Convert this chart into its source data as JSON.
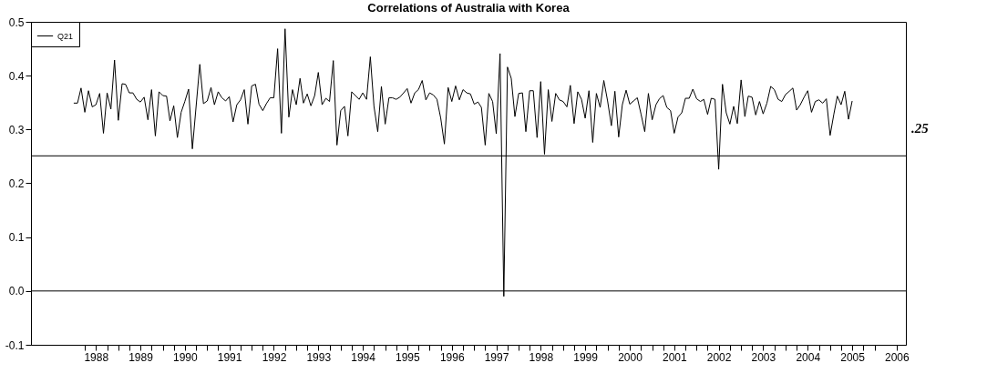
{
  "chart_data": {
    "type": "line",
    "title": "Correlations of Australia with Korea",
    "series": [
      {
        "name": "Q21",
        "color": "#000000",
        "x": [
          "1988-01",
          "1988-02",
          "1988-03",
          "1988-04",
          "1988-05",
          "1988-06",
          "1988-07",
          "1988-08",
          "1988-09",
          "1988-10",
          "1988-11",
          "1988-12",
          "1989-01",
          "1989-02",
          "1989-03",
          "1989-04",
          "1989-05",
          "1989-06",
          "1989-07",
          "1989-08",
          "1989-09",
          "1989-10",
          "1989-11",
          "1989-12",
          "1990-01",
          "1990-02",
          "1990-03",
          "1990-04",
          "1990-05",
          "1990-06",
          "1990-07",
          "1990-08",
          "1990-09",
          "1990-11",
          "1990-12",
          "1991-01",
          "1991-02",
          "1991-03",
          "1991-04",
          "1991-05",
          "1991-06",
          "1991-07",
          "1991-08",
          "1991-09",
          "1991-10",
          "1991-11",
          "1991-12",
          "1992-01",
          "1992-02",
          "1992-03",
          "1992-04",
          "1992-05",
          "1992-06",
          "1992-07",
          "1992-08",
          "1992-09",
          "1992-10",
          "1992-11",
          "1992-12",
          "1993-01",
          "1993-02",
          "1993-03",
          "1993-04",
          "1993-05",
          "1993-06",
          "1993-07",
          "1993-08",
          "1993-09",
          "1993-10",
          "1993-11",
          "1993-12",
          "1994-01",
          "1994-02",
          "1994-03",
          "1994-04",
          "1994-05",
          "1994-06",
          "1994-07",
          "1994-08",
          "1994-09",
          "1994-10",
          "1994-11",
          "1994-12",
          "1995-01",
          "1995-02",
          "1995-03",
          "1995-04",
          "1995-05",
          "1995-06",
          "1995-07",
          "1995-08",
          "1995-09",
          "1995-10",
          "1995-11",
          "1995-12",
          "1996-01",
          "1996-02",
          "1996-03",
          "1996-04",
          "1996-05",
          "1996-06",
          "1996-07",
          "1996-08",
          "1996-09",
          "1996-10",
          "1996-11",
          "1996-12",
          "1997-01",
          "1997-02",
          "1997-03",
          "1997-04",
          "1997-05",
          "1997-06",
          "1997-07",
          "1997-08",
          "1997-09",
          "1997-10",
          "1997-11",
          "1997-12",
          "1998-01",
          "1998-02",
          "1998-03",
          "1998-04",
          "1998-05",
          "1998-06",
          "1998-07",
          "1998-08",
          "1998-09",
          "1998-10",
          "1998-11",
          "1998-12",
          "1999-01",
          "1999-02",
          "1999-03",
          "1999-04",
          "1999-05",
          "1999-06",
          "1999-07",
          "1999-08",
          "1999-09",
          "1999-10",
          "1999-11",
          "1999-12",
          "2000-01",
          "2000-02",
          "2000-03",
          "2000-04",
          "2000-05",
          "2000-06",
          "2000-07",
          "2000-08",
          "2000-09",
          "2000-10",
          "2000-11",
          "2000-12",
          "2001-01",
          "2001-02",
          "2001-03",
          "2001-04",
          "2001-05",
          "2001-06",
          "2001-07",
          "2001-08",
          "2001-09",
          "2001-10",
          "2001-11",
          "2001-12",
          "2002-01",
          "2002-02",
          "2002-03",
          "2002-04",
          "2002-05",
          "2002-06",
          "2002-07",
          "2002-08",
          "2002-09",
          "2002-10",
          "2002-11",
          "2002-12",
          "2003-01",
          "2003-02",
          "2003-03",
          "2003-04",
          "2003-05",
          "2003-06",
          "2003-07",
          "2003-08",
          "2003-09",
          "2003-10",
          "2003-11",
          "2003-12",
          "2004-01",
          "2004-02",
          "2004-03",
          "2004-04",
          "2004-05",
          "2004-06",
          "2004-07",
          "2004-08",
          "2004-09",
          "2004-10",
          "2004-11",
          "2004-12",
          "2005-01",
          "2005-02",
          "2005-03",
          "2005-04",
          "2005-05",
          "2005-06",
          "2005-07"
        ],
        "values": [
          0.349,
          0.349,
          0.377,
          0.332,
          0.372,
          0.342,
          0.346,
          0.367,
          0.293,
          0.368,
          0.338,
          0.429,
          0.317,
          0.385,
          0.384,
          0.368,
          0.368,
          0.356,
          0.351,
          0.36,
          0.318,
          0.374,
          0.288,
          0.37,
          0.363,
          0.362,
          0.316,
          0.344,
          0.285,
          0.332,
          0.352,
          0.375,
          0.264,
          0.421,
          0.348,
          0.353,
          0.378,
          0.346,
          0.37,
          0.359,
          0.353,
          0.361,
          0.314,
          0.346,
          0.355,
          0.374,
          0.31,
          0.381,
          0.384,
          0.347,
          0.335,
          0.348,
          0.359,
          0.359,
          0.45,
          0.293,
          0.487,
          0.323,
          0.374,
          0.346,
          0.395,
          0.349,
          0.366,
          0.344,
          0.363,
          0.406,
          0.346,
          0.358,
          0.352,
          0.428,
          0.271,
          0.335,
          0.343,
          0.288,
          0.37,
          0.363,
          0.356,
          0.368,
          0.356,
          0.435,
          0.343,
          0.296,
          0.38,
          0.31,
          0.359,
          0.359,
          0.356,
          0.36,
          0.368,
          0.376,
          0.349,
          0.368,
          0.374,
          0.391,
          0.355,
          0.368,
          0.364,
          0.356,
          0.321,
          0.273,
          0.378,
          0.352,
          0.381,
          0.355,
          0.374,
          0.368,
          0.366,
          0.347,
          0.351,
          0.341,
          0.271,
          0.367,
          0.352,
          0.292,
          0.441,
          -0.01,
          0.416,
          0.395,
          0.324,
          0.367,
          0.368,
          0.296,
          0.372,
          0.372,
          0.285,
          0.389,
          0.254,
          0.374,
          0.315,
          0.367,
          0.355,
          0.352,
          0.342,
          0.382,
          0.311,
          0.37,
          0.356,
          0.321,
          0.372,
          0.276,
          0.367,
          0.341,
          0.391,
          0.353,
          0.307,
          0.371,
          0.286,
          0.346,
          0.373,
          0.347,
          0.353,
          0.359,
          0.329,
          0.296,
          0.367,
          0.318,
          0.346,
          0.357,
          0.363,
          0.341,
          0.335,
          0.293,
          0.323,
          0.331,
          0.358,
          0.358,
          0.375,
          0.357,
          0.352,
          0.356,
          0.328,
          0.358,
          0.356,
          0.226,
          0.384,
          0.331,
          0.31,
          0.343,
          0.311,
          0.392,
          0.324,
          0.362,
          0.36,
          0.327,
          0.352,
          0.329,
          0.349,
          0.38,
          0.374,
          0.356,
          0.352,
          0.365,
          0.371,
          0.377,
          0.336,
          0.346,
          0.36,
          0.372,
          0.332,
          0.352,
          0.355,
          0.349,
          0.357,
          0.289,
          0.329,
          0.362,
          0.346,
          0.371,
          0.319,
          0.353
        ]
      }
    ],
    "xlim": [
      "1987-01-15",
      "2006-09-15"
    ],
    "xticks": [
      {
        "value": "1988-04",
        "label": null
      },
      {
        "value": "1988-07",
        "label": "1988"
      },
      {
        "value": "1988-10",
        "label": null
      },
      {
        "value": "1989-01",
        "label": null
      },
      {
        "value": "1989-04",
        "label": null
      },
      {
        "value": "1989-07",
        "label": "1989"
      },
      {
        "value": "1989-10",
        "label": null
      },
      {
        "value": "1990-01",
        "label": null
      },
      {
        "value": "1990-04",
        "label": null
      },
      {
        "value": "1990-07",
        "label": "1990"
      },
      {
        "value": "1990-10",
        "label": null
      },
      {
        "value": "1991-01",
        "label": null
      },
      {
        "value": "1991-04",
        "label": null
      },
      {
        "value": "1991-07",
        "label": "1991"
      },
      {
        "value": "1991-10",
        "label": null
      },
      {
        "value": "1992-01",
        "label": null
      },
      {
        "value": "1992-04",
        "label": null
      },
      {
        "value": "1992-07",
        "label": "1992"
      },
      {
        "value": "1992-10",
        "label": null
      },
      {
        "value": "1993-01",
        "label": null
      },
      {
        "value": "1993-04",
        "label": null
      },
      {
        "value": "1993-07",
        "label": "1993"
      },
      {
        "value": "1993-10",
        "label": null
      },
      {
        "value": "1994-01",
        "label": null
      },
      {
        "value": "1994-04",
        "label": null
      },
      {
        "value": "1994-07",
        "label": "1994"
      },
      {
        "value": "1994-10",
        "label": null
      },
      {
        "value": "1995-01",
        "label": null
      },
      {
        "value": "1995-04",
        "label": null
      },
      {
        "value": "1995-07",
        "label": "1995"
      },
      {
        "value": "1995-10",
        "label": null
      },
      {
        "value": "1996-01",
        "label": null
      },
      {
        "value": "1996-04",
        "label": null
      },
      {
        "value": "1996-07",
        "label": "1996"
      },
      {
        "value": "1996-10",
        "label": null
      },
      {
        "value": "1997-01",
        "label": null
      },
      {
        "value": "1997-04",
        "label": null
      },
      {
        "value": "1997-07",
        "label": "1997"
      },
      {
        "value": "1997-10",
        "label": null
      },
      {
        "value": "1998-01",
        "label": null
      },
      {
        "value": "1998-04",
        "label": null
      },
      {
        "value": "1998-07",
        "label": "1998"
      },
      {
        "value": "1998-10",
        "label": null
      },
      {
        "value": "1999-01",
        "label": null
      },
      {
        "value": "1999-04",
        "label": null
      },
      {
        "value": "1999-07",
        "label": "1999"
      },
      {
        "value": "1999-10",
        "label": null
      },
      {
        "value": "2000-01",
        "label": null
      },
      {
        "value": "2000-04",
        "label": null
      },
      {
        "value": "2000-07",
        "label": "2000"
      },
      {
        "value": "2000-10",
        "label": null
      },
      {
        "value": "2001-01",
        "label": null
      },
      {
        "value": "2001-04",
        "label": null
      },
      {
        "value": "2001-07",
        "label": "2001"
      },
      {
        "value": "2001-10",
        "label": null
      },
      {
        "value": "2002-01",
        "label": null
      },
      {
        "value": "2002-04",
        "label": null
      },
      {
        "value": "2002-07",
        "label": "2002"
      },
      {
        "value": "2002-10",
        "label": null
      },
      {
        "value": "2003-01",
        "label": null
      },
      {
        "value": "2003-04",
        "label": null
      },
      {
        "value": "2003-07",
        "label": "2003"
      },
      {
        "value": "2003-10",
        "label": null
      },
      {
        "value": "2004-01",
        "label": null
      },
      {
        "value": "2004-04",
        "label": null
      },
      {
        "value": "2004-07",
        "label": "2004"
      },
      {
        "value": "2004-10",
        "label": null
      },
      {
        "value": "2005-01",
        "label": null
      },
      {
        "value": "2005-04",
        "label": null
      },
      {
        "value": "2005-07",
        "label": "2005"
      },
      {
        "value": "2005-10",
        "label": null
      },
      {
        "value": "2006-01",
        "label": null
      },
      {
        "value": "2006-07",
        "label": "2006"
      }
    ],
    "ylim": [
      -0.1,
      0.5
    ],
    "yticks": [
      {
        "value": -0.1,
        "label": "-0.1"
      },
      {
        "value": 0,
        "label": "0.0"
      },
      {
        "value": 0.1,
        "label": "0.1"
      },
      {
        "value": 0.2,
        "label": "0.2"
      },
      {
        "value": 0.3,
        "label": "0.3"
      },
      {
        "value": 0.4,
        "label": "0.4"
      },
      {
        "value": 0.5,
        "label": "0.5"
      }
    ],
    "ref_lines": [
      {
        "axis": "y",
        "value": 0,
        "color": "#000000"
      },
      {
        "axis": "y",
        "value": 0.251,
        "label": ".25",
        "color": "#000000"
      }
    ],
    "grid": false,
    "legend": "top left"
  }
}
